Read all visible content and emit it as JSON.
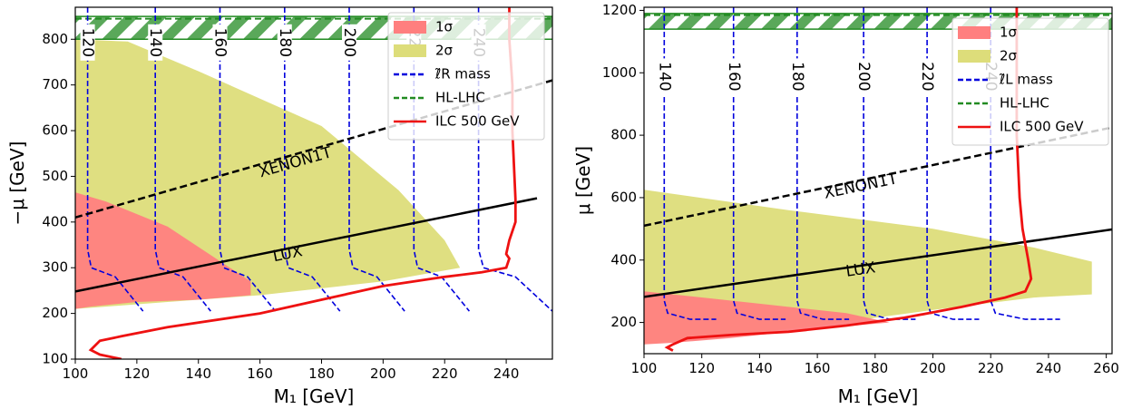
{
  "chart_data": [
    {
      "type": "contour",
      "xlabel": "M₁ [GeV]",
      "ylabel": "−μ [GeV]",
      "xlim": [
        100,
        255
      ],
      "ylim": [
        100,
        870
      ],
      "xticks": [
        100,
        120,
        140,
        160,
        180,
        200,
        220,
        240
      ],
      "yticks": [
        100,
        200,
        300,
        400,
        500,
        600,
        700,
        800
      ],
      "legend": {
        "placement": "top-right",
        "entries": [
          "1σ",
          "2σ",
          "ℓ̃R mass",
          "HL-LHC",
          "ILC 500 GeV"
        ]
      },
      "colors": {
        "one_sigma": "#ff7f7f",
        "two_sigma": "#dddd7a",
        "mass": "#0000dd",
        "hl_lhc": "#228b22",
        "ilc": "#ee1111"
      },
      "regions": {
        "one_sigma": [
          [
            100,
            465
          ],
          [
            110,
            445
          ],
          [
            130,
            390
          ],
          [
            157,
            270
          ],
          [
            157,
            240
          ],
          [
            140,
            230
          ],
          [
            120,
            225
          ],
          [
            105,
            215
          ],
          [
            100,
            210
          ]
        ],
        "two_sigma": [
          [
            100,
            800
          ],
          [
            117,
            795
          ],
          [
            140,
            730
          ],
          [
            180,
            610
          ],
          [
            205,
            470
          ],
          [
            220,
            360
          ],
          [
            225,
            300
          ],
          [
            200,
            270
          ],
          [
            160,
            240
          ],
          [
            130,
            225
          ],
          [
            110,
            215
          ],
          [
            100,
            210
          ]
        ],
        "hl_lhc_band": [
          800,
          850
        ]
      },
      "series": [
        {
          "name": "XENON1T",
          "style": "dashed",
          "x": [
            100,
            255
          ],
          "y": [
            410,
            710
          ]
        },
        {
          "name": "LUX",
          "style": "solid",
          "x": [
            100,
            250
          ],
          "y": [
            248,
            452
          ]
        },
        {
          "name": "ILC 500 GeV",
          "x": [
            115,
            108,
            105,
            108,
            115,
            130,
            160,
            180,
            200,
            220,
            232,
            240,
            241,
            240,
            241,
            243,
            243,
            242,
            242,
            241,
            241
          ],
          "y": [
            100,
            110,
            120,
            140,
            150,
            170,
            200,
            230,
            260,
            280,
            290,
            300,
            320,
            330,
            360,
            400,
            450,
            600,
            700,
            800,
            870
          ]
        }
      ],
      "contours": [
        {
          "label": "120",
          "x": 104,
          "spread": 3
        },
        {
          "label": "140",
          "x": 126,
          "spread": 3
        },
        {
          "label": "160",
          "x": 147,
          "spread": 3
        },
        {
          "label": "180",
          "x": 168,
          "spread": 3
        },
        {
          "label": "200",
          "x": 189,
          "spread": 3
        },
        {
          "label": "220",
          "x": 210,
          "spread": 3
        },
        {
          "label": "240",
          "x": 231,
          "spread": 4
        }
      ]
    },
    {
      "type": "contour",
      "xlabel": "M₁ [GeV]",
      "ylabel": "μ [GeV]",
      "xlim": [
        100,
        262
      ],
      "ylim": [
        100,
        1210
      ],
      "xticks": [
        100,
        120,
        140,
        160,
        180,
        200,
        220,
        240,
        260
      ],
      "yticks": [
        200,
        400,
        600,
        800,
        1000,
        1200
      ],
      "legend": {
        "placement": "top-right",
        "entries": [
          "1σ",
          "2σ",
          "ℓ̃L mass",
          "HL-LHC",
          "ILC 500 GeV"
        ]
      },
      "colors": {
        "one_sigma": "#ff7f7f",
        "two_sigma": "#dddd7a",
        "mass": "#0000dd",
        "hl_lhc": "#228b22",
        "ilc": "#ee1111"
      },
      "regions": {
        "one_sigma": [
          [
            100,
            300
          ],
          [
            140,
            260
          ],
          [
            170,
            230
          ],
          [
            185,
            200
          ],
          [
            160,
            180
          ],
          [
            130,
            150
          ],
          [
            110,
            135
          ],
          [
            100,
            130
          ]
        ],
        "two_sigma": [
          [
            100,
            625
          ],
          [
            150,
            560
          ],
          [
            200,
            500
          ],
          [
            235,
            440
          ],
          [
            255,
            395
          ],
          [
            255,
            290
          ],
          [
            235,
            280
          ],
          [
            200,
            240
          ],
          [
            160,
            190
          ],
          [
            130,
            160
          ],
          [
            110,
            140
          ],
          [
            100,
            130
          ]
        ],
        "hl_lhc_band": [
          1140,
          1190
        ]
      },
      "series": [
        {
          "name": "XENON1T",
          "style": "dashed",
          "x": [
            100,
            262
          ],
          "y": [
            510,
            825
          ]
        },
        {
          "name": "LUX",
          "style": "solid",
          "x": [
            100,
            262
          ],
          "y": [
            282,
            498
          ]
        },
        {
          "name": "ILC 500 GeV",
          "x": [
            110,
            108,
            110,
            115,
            130,
            150,
            170,
            190,
            210,
            225,
            232,
            234,
            233,
            231,
            230,
            229,
            229
          ],
          "y": [
            110,
            120,
            130,
            150,
            160,
            170,
            190,
            215,
            250,
            280,
            300,
            340,
            400,
            500,
            600,
            800,
            1210
          ]
        }
      ],
      "contours": [
        {
          "label": "140",
          "x": 107,
          "spread": 3
        },
        {
          "label": "160",
          "x": 131,
          "spread": 3
        },
        {
          "label": "180",
          "x": 153,
          "spread": 3
        },
        {
          "label": "200",
          "x": 176,
          "spread": 3
        },
        {
          "label": "220",
          "x": 198,
          "spread": 3
        },
        {
          "label": "240",
          "x": 220,
          "spread": 4
        }
      ]
    }
  ]
}
